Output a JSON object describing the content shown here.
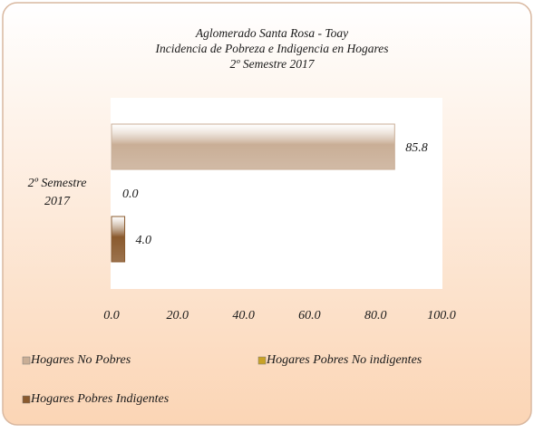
{
  "chart_data": {
    "type": "barh",
    "title_lines": [
      "Aglomerado Santa Rosa - Toay",
      "Incidencia de Pobreza e Indigencia en Hogares",
      "2º Semestre 2017"
    ],
    "categories": [
      "2º Semestre 2017"
    ],
    "series": [
      {
        "name": "Hogares No Pobres",
        "color": "#c9ae96",
        "values": [
          85.8
        ],
        "value_labels": [
          "85.8"
        ]
      },
      {
        "name": "Hogares Pobres No indigentes",
        "color": "#c9a227",
        "values": [
          0.0
        ],
        "value_labels": [
          "0.0"
        ]
      },
      {
        "name": "Hogares Pobres Indigentes",
        "color": "#8a5a2e",
        "values": [
          4.0
        ],
        "value_labels": [
          "4.0"
        ]
      }
    ],
    "xlim": [
      0,
      100
    ],
    "xticks": [
      {
        "value": 0,
        "label": "0.0"
      },
      {
        "value": 20,
        "label": "20.0"
      },
      {
        "value": 40,
        "label": "40.0"
      },
      {
        "value": 60,
        "label": "60.0"
      },
      {
        "value": 80,
        "label": "80.0"
      },
      {
        "value": 100,
        "label": "100.0"
      }
    ],
    "legend": "bottom"
  }
}
